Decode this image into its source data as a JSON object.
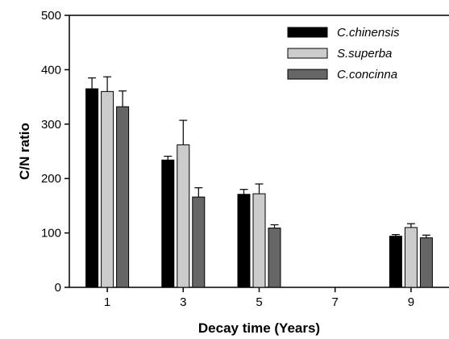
{
  "chart_data": {
    "type": "bar",
    "title": "",
    "xlabel": "Decay time (Years)",
    "ylabel": "C/N ratio",
    "x_ticks": [
      1,
      3,
      5,
      7,
      9
    ],
    "xlim": [
      0,
      10
    ],
    "ylim": [
      0,
      500
    ],
    "y_ticks": [
      0,
      100,
      200,
      300,
      400,
      500
    ],
    "categories": [
      1,
      3,
      5,
      9
    ],
    "legend_position": "top-right",
    "grid": false,
    "series": [
      {
        "name": "C.chinensis",
        "color": "#000000",
        "values": [
          365,
          234,
          171,
          94
        ],
        "errors": [
          20,
          7,
          9,
          3
        ]
      },
      {
        "name": "S.superba",
        "color": "#cccccc",
        "values": [
          360,
          262,
          172,
          110
        ],
        "errors": [
          27,
          45,
          18,
          7
        ]
      },
      {
        "name": "C.concinna",
        "color": "#666666",
        "values": [
          332,
          166,
          109,
          91
        ],
        "errors": [
          29,
          17,
          6,
          5
        ]
      }
    ]
  }
}
